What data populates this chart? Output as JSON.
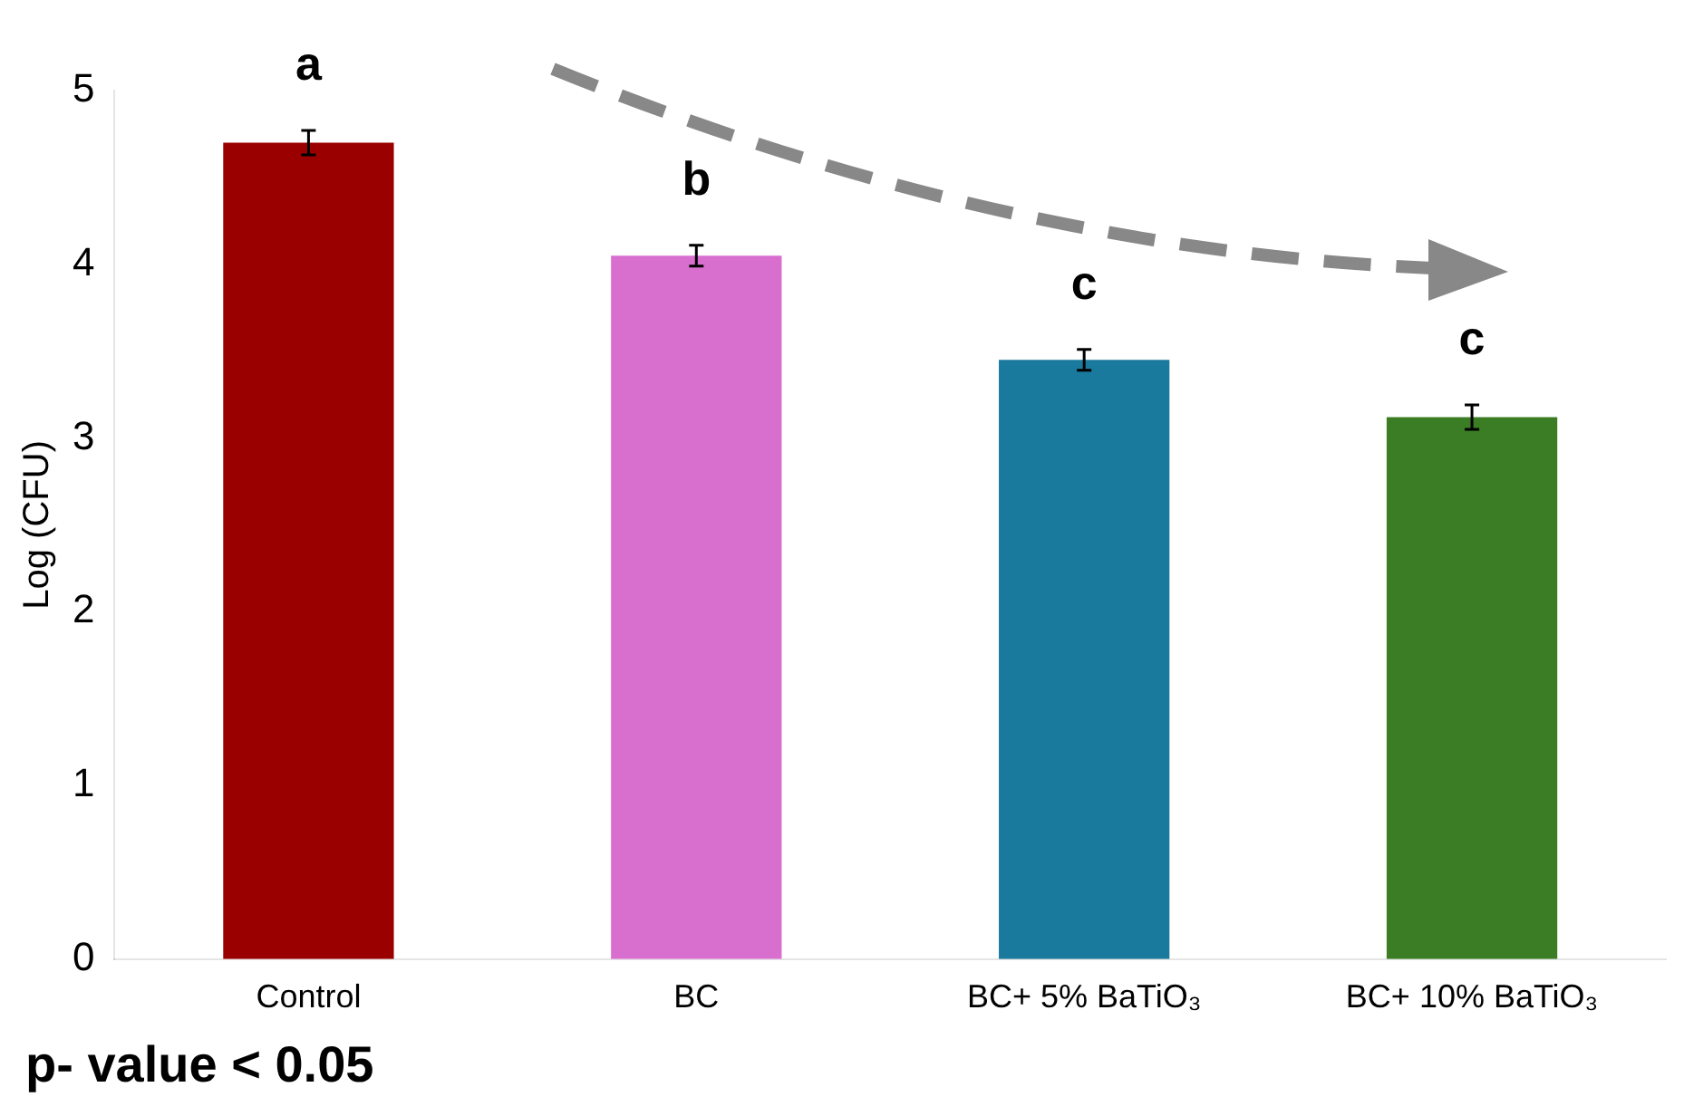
{
  "chart_data": {
    "type": "bar",
    "ylabel": "Log (CFU)",
    "categories": [
      "Control",
      "BC",
      "BC+ 5% BaTiO₃",
      "BC+ 10% BaTiO₃"
    ],
    "values": [
      4.7,
      4.05,
      3.45,
      3.12
    ],
    "errors": [
      0.07,
      0.06,
      0.06,
      0.07
    ],
    "colors": [
      "#9b0000",
      "#d86fcf",
      "#1a7a9e",
      "#3a7d24"
    ],
    "ylim": [
      0,
      5
    ],
    "yticks": [
      0,
      1,
      2,
      3,
      4,
      5
    ],
    "grid": false,
    "legend": false,
    "annotations": [
      "a",
      "b",
      "c",
      "c",
      "p- value < 0.05"
    ]
  }
}
